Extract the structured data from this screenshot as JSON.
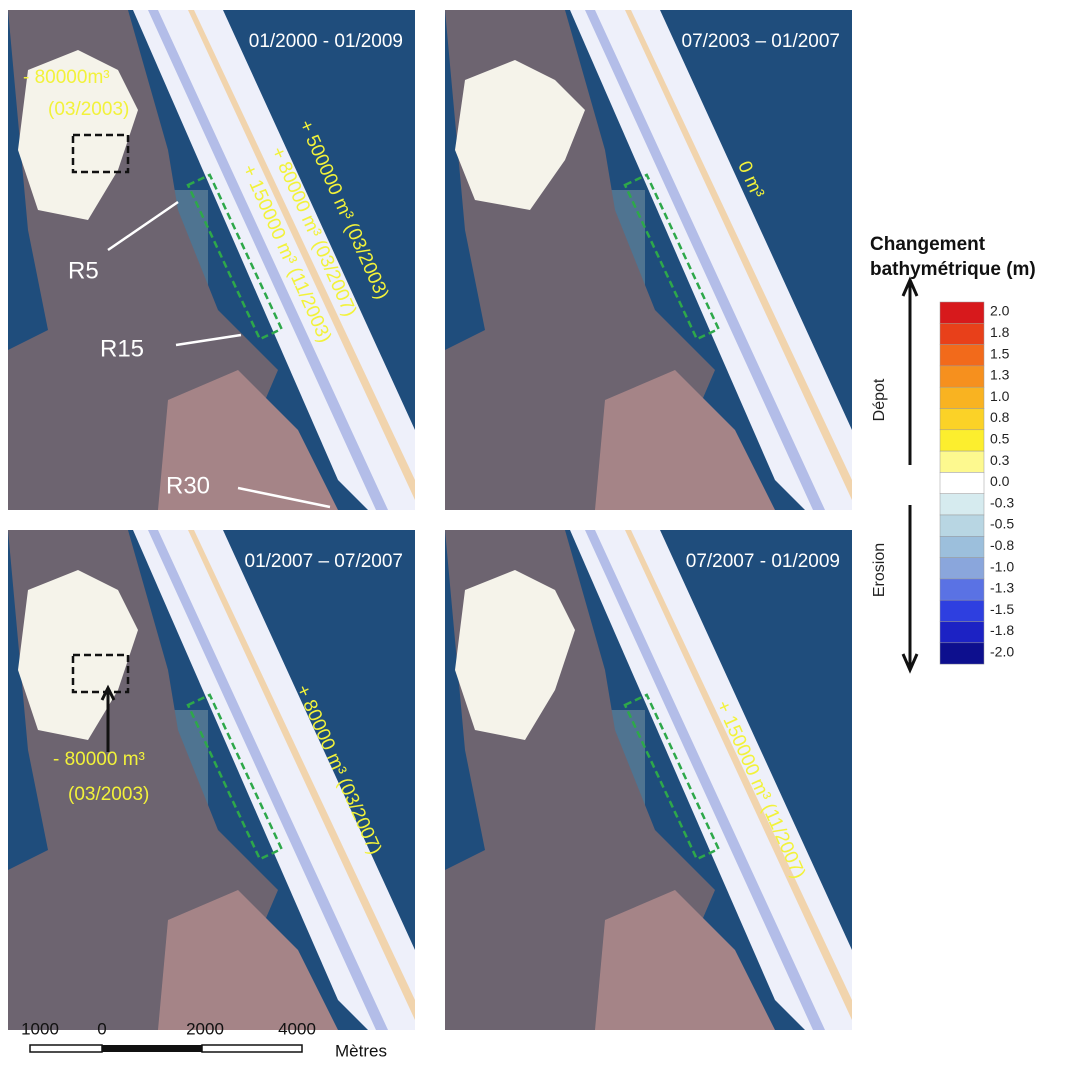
{
  "panels": [
    {
      "period": "01/2000 - 01/2009",
      "annotations": [
        "- 80000m³",
        "(03/2003)",
        "+ 500000 m³ (03/2003)",
        "+ 80000 m³ (03/2007)",
        "+ 150000 m³ (11/2003)"
      ],
      "profiles": [
        "R5",
        "R15",
        "R30"
      ]
    },
    {
      "period": "07/2003 – 01/2007",
      "annotations": [
        "0 m³"
      ]
    },
    {
      "period": "01/2007 – 07/2007",
      "annotations": [
        "- 80000 m³",
        "(03/2003)",
        "+ 80000 m³ (03/2007)"
      ]
    },
    {
      "period": "07/2007 - 01/2009",
      "annotations": [
        "+ 150000 m³ (11/2007)"
      ]
    }
  ],
  "legend": {
    "title": [
      "Changement",
      "bathymétrique (m)"
    ],
    "up": "Dépot",
    "down": "Erosion",
    "items": [
      {
        "label": "2.0",
        "color": "#d7191c"
      },
      {
        "label": "1.8",
        "color": "#e8401a"
      },
      {
        "label": "1.5",
        "color": "#f26a1b"
      },
      {
        "label": "1.3",
        "color": "#f6901e"
      },
      {
        "label": "1.0",
        "color": "#f9b321"
      },
      {
        "label": "0.8",
        "color": "#fbd227"
      },
      {
        "label": "0.5",
        "color": "#fcee2e"
      },
      {
        "label": "0.3",
        "color": "#fdf98f"
      },
      {
        "label": "0.0",
        "color": "#ffffff"
      },
      {
        "label": "-0.3",
        "color": "#d6ebef"
      },
      {
        "label": "-0.5",
        "color": "#b8d6e3"
      },
      {
        "label": "-0.8",
        "color": "#9cbfdc"
      },
      {
        "label": "-1.0",
        "color": "#8aa6dc"
      },
      {
        "label": "-1.3",
        "color": "#5a72e4"
      },
      {
        "label": "-1.5",
        "color": "#2e3fe0"
      },
      {
        "label": "-1.8",
        "color": "#1c22c4"
      },
      {
        "label": "-2.0",
        "color": "#0d0f8e"
      }
    ]
  },
  "scale_bar": {
    "labels": [
      "1000",
      "0",
      "2000",
      "4000"
    ],
    "unit": "Mètres"
  }
}
